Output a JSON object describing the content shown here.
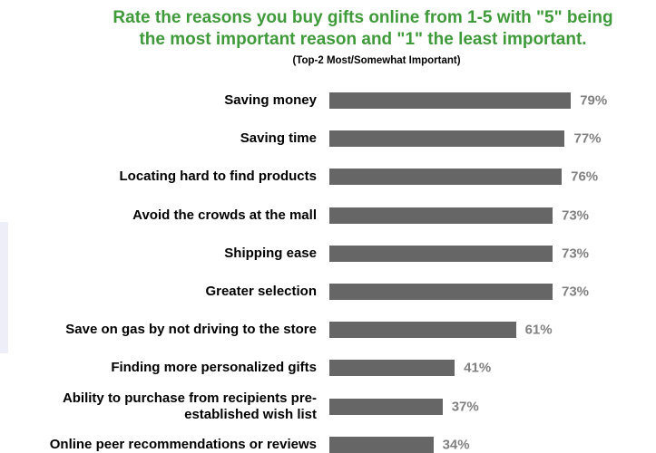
{
  "chart_data": {
    "type": "bar",
    "orientation": "horizontal",
    "title": "Rate the reasons you buy gifts online from 1-5 with \"5\" being\nthe most important reason and \"1\" the least important.",
    "subtitle": "(Top-2 Most/Somewhat Important)",
    "categories": [
      "Saving money",
      "Saving time",
      "Locating hard to find products",
      "Avoid the crowds at the mall",
      "Shipping ease",
      "Greater selection",
      "Save on gas by not driving to the store",
      "Finding more personalized gifts",
      "Ability to purchase from recipients pre-\nestablished wish list",
      "Online peer recommendations or reviews"
    ],
    "values": [
      79,
      77,
      76,
      73,
      73,
      73,
      61,
      41,
      37,
      34
    ],
    "value_labels": [
      "79%",
      "77%",
      "76%",
      "73%",
      "73%",
      "73%",
      "61%",
      "41%",
      "37%",
      "34%"
    ],
    "color": "#666666"
  }
}
